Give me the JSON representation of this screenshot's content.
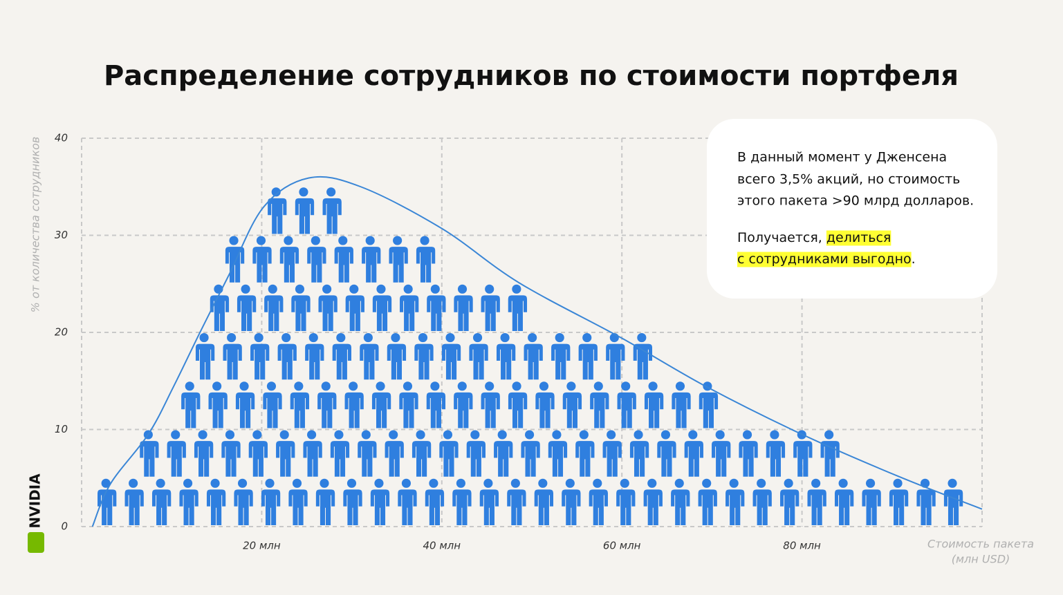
{
  "chart_data": {
    "type": "pictogram",
    "title": "Распределение сотрудников по стоимости портфеля",
    "ylabel": "% от количества сотрудников",
    "xlabel": [
      "Стоимость пакета",
      "(млн USD)"
    ],
    "brand": "NVIDIA",
    "xlim": [
      0,
      100
    ],
    "ylim": [
      0,
      40
    ],
    "yticks": [
      0,
      10,
      20,
      30,
      40
    ],
    "xticks": [
      {
        "value": 20,
        "label": "20 млн"
      },
      {
        "value": 40,
        "label": "40 млн"
      },
      {
        "value": 60,
        "label": "60 млн"
      },
      {
        "value": 80,
        "label": "80 млн"
      }
    ],
    "grid": true,
    "color": "#2f7fdf",
    "rows": [
      {
        "y": [
          0,
          5
        ],
        "x": [
          2.7,
          96.7
        ],
        "count": 32
      },
      {
        "y": [
          5,
          10
        ],
        "x": [
          7.4,
          83
        ],
        "count": 26
      },
      {
        "y": [
          10,
          15
        ],
        "x": [
          12,
          69.5
        ],
        "count": 20
      },
      {
        "y": [
          15,
          20
        ],
        "x": [
          13.6,
          62.2
        ],
        "count": 17
      },
      {
        "y": [
          20,
          25
        ],
        "x": [
          15.2,
          48.3
        ],
        "count": 12
      },
      {
        "y": [
          25,
          30
        ],
        "x": [
          16.9,
          38.1
        ],
        "count": 8
      },
      {
        "y": [
          30,
          35
        ],
        "x": [
          21.6,
          27.7
        ],
        "count": 3
      }
    ],
    "curve": {
      "color": "#3a86d6",
      "x": [
        1.2,
        3.2,
        7.4,
        10.2,
        13.2,
        16.3,
        20.2,
        25.2,
        31,
        40,
        48.6,
        60,
        69.4,
        80,
        90.9,
        100
      ],
      "values": [
        0,
        4.4,
        9.5,
        14.4,
        20.1,
        25.8,
        32.9,
        35.9,
        35,
        30.7,
        25.1,
        19.4,
        14.4,
        9.5,
        5.1,
        1.8
      ]
    },
    "annotation": {
      "lines": [
        "В данный момент у Дженсена",
        "всего 3,5% акций, но стоимость",
        "этого пакета >90 млрд долларов."
      ],
      "line4": [
        "Получается, ",
        "делиться"
      ],
      "line5": [
        "с сотрудниками выгодно",
        "."
      ],
      "highlight": "#ffff33"
    }
  }
}
